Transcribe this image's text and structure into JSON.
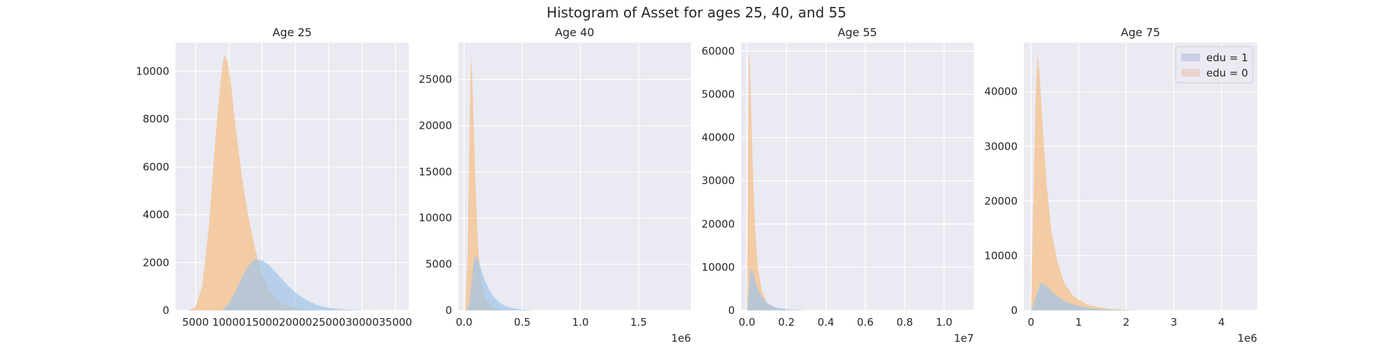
{
  "colors": {
    "background": "#eaeaf2",
    "grid": "#ffffff",
    "edu1_fill": "#9fc5e8",
    "edu0_fill": "#f6c089",
    "legend_edu1": "#c9cfe7",
    "legend_edu0": "#e9d3cd"
  },
  "chart_data": {
    "type": "histogram",
    "title": "Histogram of Asset for ages 25, 40, and 55",
    "legend": {
      "position": "top-right",
      "entries": [
        "edu = 1",
        "edu = 0"
      ]
    },
    "panels": [
      {
        "title": "Age 25",
        "xlim": [
          2000,
          37000
        ],
        "ylim": [
          0,
          11200
        ],
        "x_ticks": [
          5000,
          10000,
          15000,
          20000,
          25000,
          30000,
          35000
        ],
        "x_tick_labels": [
          "5000",
          "10000",
          "15000",
          "20000",
          "25000",
          "30000",
          "35000"
        ],
        "y_ticks": [
          0,
          2000,
          4000,
          6000,
          8000,
          10000
        ],
        "y_tick_labels": [
          "0",
          "2000",
          "4000",
          "6000",
          "8000",
          "10000"
        ],
        "x_offset_label": "",
        "series": [
          {
            "name": "edu = 1",
            "x": [
              9000,
              10000,
              11000,
              12000,
              13000,
              14000,
              15000,
              16000,
              17000,
              18000,
              19000,
              20000,
              21000,
              22000,
              23000,
              24000,
              25000,
              26000,
              27000,
              28000,
              30000,
              32000
            ],
            "y": [
              0,
              300,
              800,
              1400,
              1900,
              2150,
              2100,
              1900,
              1600,
              1300,
              1000,
              750,
              550,
              380,
              260,
              170,
              110,
              70,
              45,
              25,
              10,
              0
            ]
          },
          {
            "name": "edu = 0",
            "x": [
              4000,
              5000,
              6000,
              7000,
              8000,
              8800,
              9300,
              9800,
              10300,
              10800,
              11500,
              12000,
              13000,
              14000,
              15000,
              16000,
              17000,
              18000,
              19000,
              20000,
              21000,
              22000,
              23000
            ],
            "y": [
              0,
              150,
              1000,
              3500,
              7200,
              9700,
              10700,
              10400,
              9500,
              8200,
              6600,
              5500,
              3800,
              2500,
              1500,
              900,
              550,
              300,
              180,
              100,
              50,
              20,
              0
            ]
          }
        ]
      },
      {
        "title": "Age 40",
        "xlim": [
          -50000,
          1950000
        ],
        "ylim": [
          0,
          29000
        ],
        "x_ticks": [
          0,
          500000,
          1000000,
          1500000
        ],
        "x_tick_labels": [
          "0.0",
          "0.5",
          "1.0",
          "1.5"
        ],
        "y_ticks": [
          0,
          5000,
          10000,
          15000,
          20000,
          25000
        ],
        "y_tick_labels": [
          "0",
          "5000",
          "10000",
          "15000",
          "20000",
          "25000"
        ],
        "x_offset_label": "1e6",
        "series": [
          {
            "name": "edu = 1",
            "x": [
              20000,
              40000,
              60000,
              80000,
              100000,
              120000,
              150000,
              180000,
              220000,
              260000,
              300000,
              350000,
              400000,
              500000,
              600000
            ],
            "y": [
              0,
              500,
              2500,
              5000,
              6000,
              5500,
              4300,
              3200,
              2100,
              1400,
              900,
              500,
              280,
              80,
              0
            ]
          },
          {
            "name": "edu = 0",
            "x": [
              10000,
              30000,
              50000,
              60000,
              70000,
              80000,
              100000,
              120000,
              140000,
              160000,
              190000,
              220000,
              260000,
              300000,
              350000,
              400000
            ],
            "y": [
              0,
              6000,
              22000,
              27500,
              25500,
              21000,
              13000,
              7000,
              4000,
              2300,
              1200,
              600,
              250,
              100,
              30,
              0
            ]
          }
        ]
      },
      {
        "title": "Age 55",
        "xlim": [
          -300000,
          11500000
        ],
        "ylim": [
          0,
          62000
        ],
        "x_ticks": [
          0,
          2000000,
          4000000,
          6000000,
          8000000,
          10000000
        ],
        "x_tick_labels": [
          "0.0",
          "0.2",
          "0.4",
          "0.6",
          "0.8",
          "1.0"
        ],
        "y_ticks": [
          0,
          10000,
          20000,
          30000,
          40000,
          50000,
          60000
        ],
        "y_tick_labels": [
          "0",
          "10000",
          "20000",
          "30000",
          "40000",
          "50000",
          "60000"
        ],
        "x_offset_label": "1e7",
        "series": [
          {
            "name": "edu = 1",
            "x": [
              0,
              80000,
              150000,
              250000,
              350000,
              500000,
              700000,
              1000000,
              1400000,
              2000000,
              3000000
            ],
            "y": [
              0,
              4000,
              8500,
              9800,
              8000,
              5500,
              3500,
              1800,
              800,
              250,
              0
            ]
          },
          {
            "name": "edu = 0",
            "x": [
              0,
              50000,
              100000,
              150000,
              200000,
              300000,
              400000,
              550000,
              750000,
              1000000,
              1400000,
              2000000
            ],
            "y": [
              0,
              35000,
              60000,
              57000,
              48000,
              32000,
              20000,
              10000,
              4500,
              1800,
              500,
              0
            ]
          }
        ]
      },
      {
        "title": "Age 75",
        "xlim": [
          -150000,
          4750000
        ],
        "ylim": [
          0,
          49000
        ],
        "x_ticks": [
          0,
          1000000,
          2000000,
          3000000,
          4000000
        ],
        "x_tick_labels": [
          "0",
          "1",
          "2",
          "3",
          "4"
        ],
        "y_ticks": [
          0,
          10000,
          20000,
          30000,
          40000
        ],
        "y_tick_labels": [
          "0",
          "10000",
          "20000",
          "30000",
          "40000"
        ],
        "x_offset_label": "1e6",
        "series": [
          {
            "name": "edu = 1",
            "x": [
              0,
              50000,
              100000,
              200000,
              300000,
              400000,
              550000,
              750000,
              1000000,
              1300000,
              1700000,
              2200000
            ],
            "y": [
              0,
              1000,
              2500,
              5000,
              4700,
              3800,
              2600,
              1500,
              800,
              350,
              100,
              0
            ]
          },
          {
            "name": "edu = 0",
            "x": [
              0,
              50000,
              100000,
              140000,
              180000,
              250000,
              330000,
              420000,
              550000,
              700000,
              900000,
              1200000,
              1600000,
              2200000
            ],
            "y": [
              0,
              20000,
              40000,
              47000,
              43000,
              33000,
              23000,
              15000,
              9000,
              5000,
              2500,
              1000,
              300,
              0
            ]
          }
        ]
      }
    ]
  }
}
